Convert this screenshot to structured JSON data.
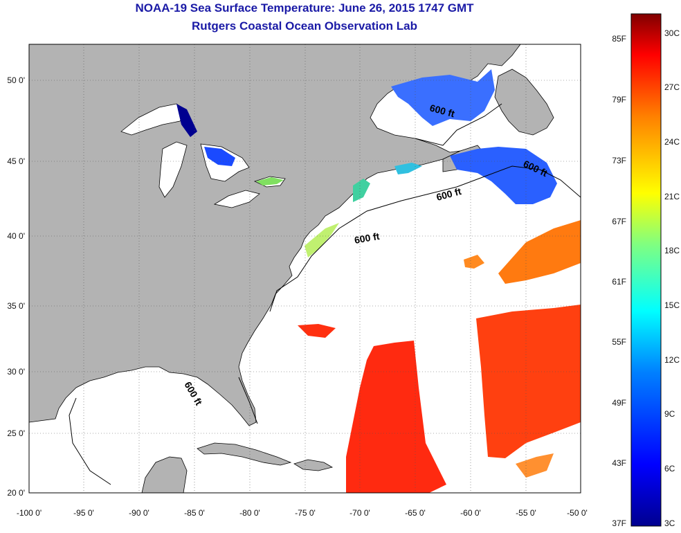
{
  "title": "NOAA-19 Sea Surface Temperature:  June 26, 2015 1747 GMT",
  "subtitle": "Rutgers Coastal Ocean Observation Lab",
  "map": {
    "lon_ticks": [
      "-100 0'",
      "-95 0'",
      "-90 0'",
      "-85 0'",
      "-80 0'",
      "-75 0'",
      "-70 0'",
      "-65 0'",
      "-60 0'",
      "-55 0'",
      "-50 0'"
    ],
    "lat_ticks": [
      "50 0'",
      "45 0'",
      "40 0'",
      "35 0'",
      "30 0'",
      "25 0'",
      "20 0'"
    ],
    "contour_labels": [
      "600 ft",
      "600 ft",
      "600 ft",
      "600 ft",
      "600 ft"
    ],
    "land_color": "#b3b3b3",
    "ocean_color": "#ffffff"
  },
  "colorbar": {
    "fahrenheit_labels": [
      "85F",
      "79F",
      "73F",
      "67F",
      "61F",
      "55F",
      "49F",
      "43F",
      "37F"
    ],
    "celsius_labels": [
      "30C",
      "27C",
      "24C",
      "21C",
      "18C",
      "15C",
      "12C",
      "9C",
      "6C",
      "3C"
    ],
    "colors": [
      "#00008f",
      "#0000ff",
      "#0080ff",
      "#00ffff",
      "#80ff80",
      "#ffff00",
      "#ff8000",
      "#ff0000",
      "#800000"
    ]
  }
}
